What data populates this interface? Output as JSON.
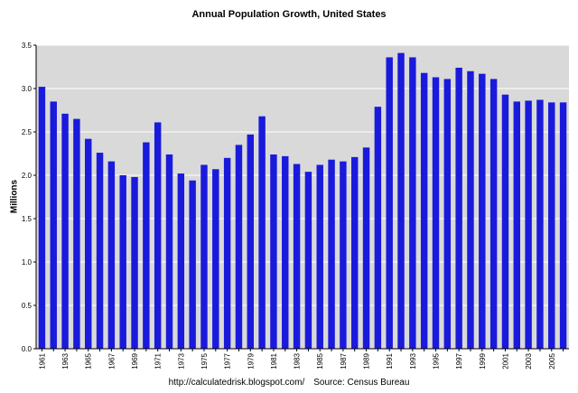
{
  "chart_data": {
    "type": "bar",
    "title": "Annual Population Growth, United States",
    "xlabel": "",
    "ylabel": "Millions",
    "ylim": [
      0,
      3.5
    ],
    "yticks": [
      "0.0",
      "0.5",
      "1.0",
      "1.5",
      "2.0",
      "2.5",
      "3.0",
      "3.5"
    ],
    "ytick_values": [
      0,
      0.5,
      1.0,
      1.5,
      2.0,
      2.5,
      3.0,
      3.5
    ],
    "grid": true,
    "bar_color": "#1a1adc",
    "plot_background": "#d9d9d9",
    "categories": [
      "1961",
      "1962",
      "1963",
      "1964",
      "1965",
      "1966",
      "1967",
      "1968",
      "1969",
      "1970",
      "1971",
      "1972",
      "1973",
      "1974",
      "1975",
      "1976",
      "1977",
      "1978",
      "1979",
      "1980",
      "1981",
      "1982",
      "1983",
      "1984",
      "1985",
      "1986",
      "1987",
      "1988",
      "1989",
      "1990",
      "1991",
      "1992",
      "1993",
      "1994",
      "1995",
      "1996",
      "1997",
      "1998",
      "1999",
      "2000",
      "2001",
      "2002",
      "2003",
      "2004",
      "2005",
      "2006"
    ],
    "x_tick_labels": [
      "1961",
      "",
      "1963",
      "",
      "1965",
      "",
      "1967",
      "",
      "1969",
      "",
      "1971",
      "",
      "1973",
      "",
      "1975",
      "",
      "1977",
      "",
      "1979",
      "",
      "1981",
      "",
      "1983",
      "",
      "1985",
      "",
      "1987",
      "",
      "1989",
      "",
      "1991",
      "",
      "1993",
      "",
      "1995",
      "",
      "1997",
      "",
      "1999",
      "",
      "2001",
      "",
      "2003",
      "",
      "2005",
      ""
    ],
    "values": [
      3.02,
      2.85,
      2.71,
      2.65,
      2.42,
      2.26,
      2.16,
      2.0,
      1.98,
      2.38,
      2.61,
      2.24,
      2.02,
      1.94,
      2.12,
      2.07,
      2.2,
      2.35,
      2.47,
      2.68,
      2.24,
      2.22,
      2.13,
      2.04,
      2.12,
      2.18,
      2.16,
      2.21,
      2.32,
      2.79,
      3.36,
      3.41,
      3.36,
      3.18,
      3.13,
      3.11,
      3.24,
      3.2,
      3.17,
      3.11,
      2.93,
      2.85,
      2.86,
      2.87,
      2.84,
      2.84
    ]
  },
  "footer": {
    "url": "http://calculatedrisk.blogspot.com/",
    "source": "Source: Census Bureau"
  }
}
